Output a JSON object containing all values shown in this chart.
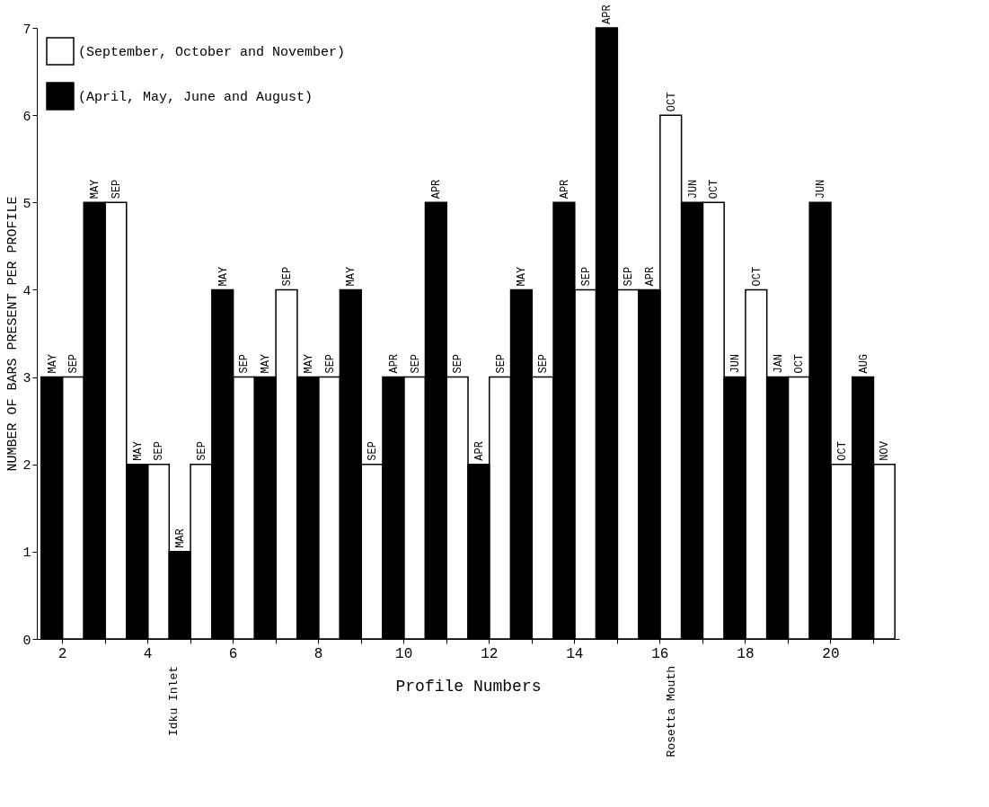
{
  "chart_data": {
    "type": "bar",
    "xlabel": "Profile Numbers",
    "ylabel": "NUMBER OF BARS PRESENT PER PROFILE",
    "categories": [
      "2",
      null,
      "4",
      null,
      "6",
      null,
      "8",
      null,
      "10",
      null,
      "12",
      null,
      "14",
      null,
      "16",
      null,
      "18",
      null,
      "20",
      null
    ],
    "series": [
      {
        "name": "(September, October and November)",
        "color": "#ffffff",
        "values": [
          3,
          5,
          2,
          2,
          3,
          4,
          3,
          2,
          3,
          3,
          3,
          3,
          4,
          4,
          6,
          5,
          4,
          3,
          2,
          2
        ],
        "value_labels": [
          "SEP",
          "SEP",
          "SEP",
          "SEP",
          "SEP",
          "SEP",
          "SEP",
          "SEP",
          "SEP",
          "SEP",
          "SEP",
          "SEP",
          "SEP",
          "SEP",
          "OCT",
          "OCT",
          "OCT",
          "OCT",
          "OCT",
          "NOV"
        ]
      },
      {
        "name": "(April, May, June and August)",
        "color": "#000000",
        "values": [
          3,
          5,
          2,
          1,
          4,
          3,
          3,
          4,
          3,
          5,
          2,
          4,
          5,
          7,
          4,
          5,
          3,
          3,
          5,
          3
        ],
        "value_labels": [
          "MAY",
          "MAY",
          "MAY",
          "MAR",
          "MAY",
          "MAY",
          "MAY",
          "MAY",
          "APR",
          "APR",
          "APR",
          "MAY",
          "APR",
          "APR",
          "APR",
          "JUN",
          "JUN",
          "JAN",
          "JUN",
          "AUG"
        ]
      }
    ],
    "ylim": [
      0,
      7
    ],
    "yticks": [
      0,
      1,
      2,
      3,
      4,
      5,
      6,
      7
    ],
    "annotations": [
      "Idku Inlet",
      "Rosetta Mouth"
    ],
    "legend": "top left",
    "grid": false
  }
}
